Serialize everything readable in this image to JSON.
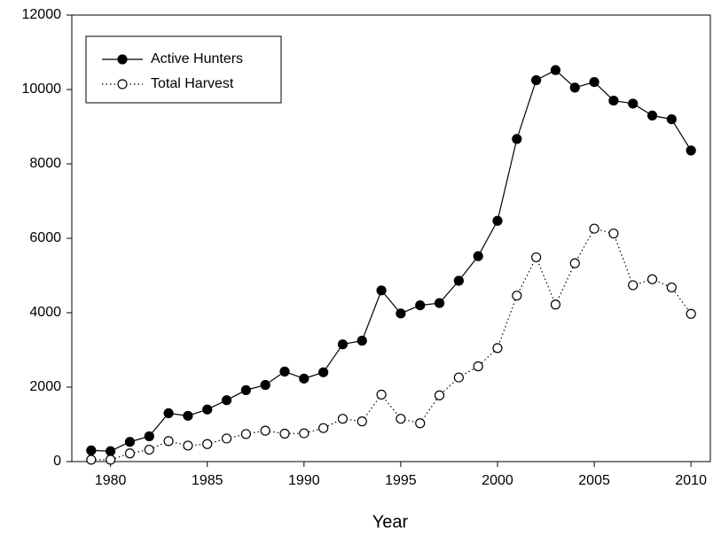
{
  "chart_data": {
    "type": "line",
    "x_label": "Year",
    "x": [
      1979,
      1980,
      1981,
      1982,
      1983,
      1984,
      1985,
      1986,
      1987,
      1988,
      1989,
      1990,
      1991,
      1992,
      1993,
      1994,
      1995,
      1996,
      1997,
      1998,
      1999,
      2000,
      2001,
      2002,
      2003,
      2004,
      2005,
      2006,
      2007,
      2008,
      2009,
      2010
    ],
    "series": [
      {
        "name": "Active Hunters",
        "color": "#000000",
        "marker_fill": "#000000",
        "line_style": "solid",
        "values": [
          300,
          280,
          530,
          680,
          1300,
          1230,
          1400,
          1650,
          1920,
          2060,
          2420,
          2230,
          2400,
          3150,
          3250,
          4600,
          3980,
          4200,
          4260,
          4860,
          5520,
          6470,
          8670,
          10250,
          10520,
          10050,
          10200,
          9700,
          9620,
          9300,
          9200,
          8360
        ]
      },
      {
        "name": "Total Harvest",
        "color": "#000000",
        "marker_fill": "#ffffff",
        "line_style": "dotted",
        "values": [
          50,
          50,
          220,
          320,
          550,
          430,
          470,
          620,
          740,
          830,
          750,
          760,
          900,
          1150,
          1080,
          1800,
          1150,
          1030,
          1780,
          2260,
          2560,
          3050,
          4460,
          5490,
          4220,
          5330,
          6260,
          6130,
          4740,
          4900,
          4680,
          3970
        ]
      }
    ],
    "xlim": [
      1978,
      2011
    ],
    "xticks": [
      1980,
      1985,
      1990,
      1995,
      2000,
      2005,
      2010
    ],
    "ylim": [
      0,
      12000
    ],
    "yticks": [
      0,
      2000,
      4000,
      6000,
      8000,
      10000,
      12000
    ],
    "legend": "upper left"
  }
}
